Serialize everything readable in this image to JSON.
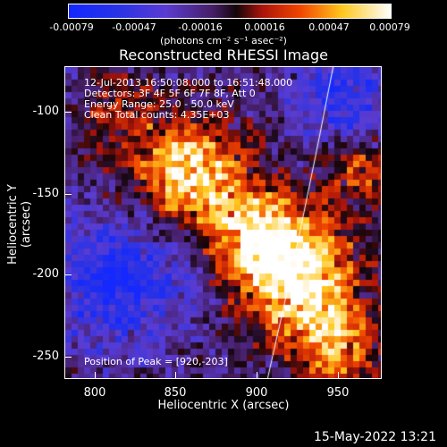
{
  "colorbar": {
    "ticks": [
      "-0.00079",
      "-0.00047",
      "-0.00016",
      "0.00016",
      "0.00047",
      "0.00079"
    ],
    "units": "(photons cm⁻² s⁻¹ asec⁻²)"
  },
  "title": "Reconstructed RHESSI Image",
  "info": {
    "time": "12-Jul-2013 16:50:08.000 to 16:51:48.000",
    "detectors": "Detectors: 3F 4F 5F 6F 7F 8F, Att 0",
    "energy": "Energy Range: 25.0 - 50.0 keV",
    "clean": "Clean     Total counts: 4.35E+03"
  },
  "axes": {
    "xlabel": "Heliocentric X (arcsec)",
    "ylabel": "Heliocentric Y (arcsec)",
    "xticks": [
      "800",
      "850",
      "900",
      "950"
    ],
    "yticks": [
      "-100",
      "-150",
      "-200",
      "-250"
    ]
  },
  "peak": "Position of Peak = [920,-203]",
  "timestamp": "15-May-2022 13:21",
  "colors": {
    "background": "#000000",
    "frame": "#ffffff"
  }
}
